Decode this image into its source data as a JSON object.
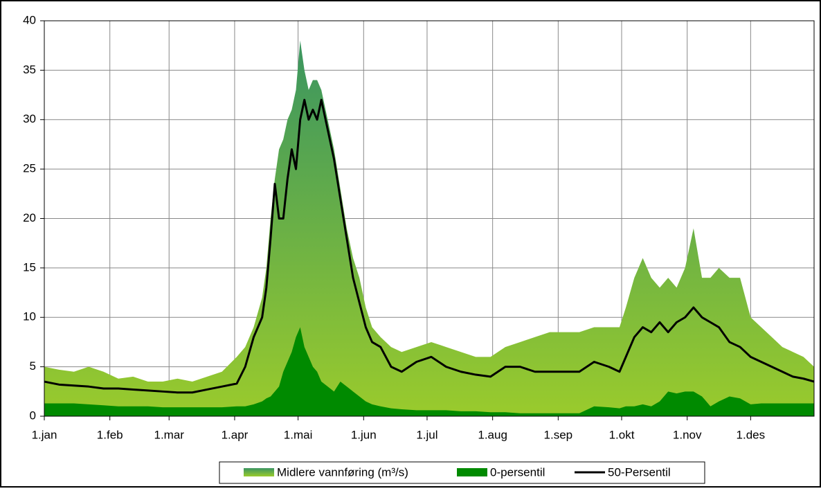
{
  "chart_data": {
    "type": "area",
    "x": [
      1,
      8,
      15,
      22,
      29,
      36,
      43,
      50,
      57,
      64,
      71,
      78,
      85,
      92,
      96,
      100,
      104,
      106,
      108,
      110,
      112,
      114,
      116,
      118,
      120,
      122,
      124,
      126,
      128,
      130,
      132,
      135,
      138,
      141,
      144,
      147,
      150,
      153,
      156,
      160,
      165,
      170,
      177,
      184,
      191,
      198,
      205,
      212,
      219,
      226,
      233,
      240,
      247,
      254,
      261,
      268,
      273,
      276,
      280,
      284,
      288,
      292,
      296,
      300,
      304,
      308,
      312,
      316,
      320,
      325,
      330,
      335,
      340,
      345,
      350,
      355,
      360,
      365
    ],
    "xlim": [
      1,
      365
    ],
    "xticks": [
      {
        "value": 1,
        "label": "1.jan"
      },
      {
        "value": 32,
        "label": "1.feb"
      },
      {
        "value": 60,
        "label": "1.mar"
      },
      {
        "value": 91,
        "label": "1.apr"
      },
      {
        "value": 121,
        "label": "1.mai"
      },
      {
        "value": 152,
        "label": "1.jun"
      },
      {
        "value": 182,
        "label": "1.jul"
      },
      {
        "value": 213,
        "label": "1.aug"
      },
      {
        "value": 244,
        "label": "1.sep"
      },
      {
        "value": 274,
        "label": "1.okt"
      },
      {
        "value": 305,
        "label": "1.nov"
      },
      {
        "value": 335,
        "label": "1.des"
      }
    ],
    "ylim": [
      0,
      40
    ],
    "yticks": [
      0,
      5,
      10,
      15,
      20,
      25,
      30,
      35,
      40
    ],
    "grid": true,
    "legend": "bottom",
    "series": [
      {
        "name": "Midlere vannføring (m³/s)",
        "kind": "area",
        "colors": [
          "#3a9560",
          "#9acb2c"
        ],
        "values": [
          5,
          4.7,
          4.5,
          5,
          4.5,
          3.8,
          4,
          3.5,
          3.5,
          3.8,
          3.5,
          4,
          4.5,
          6,
          7,
          9,
          12,
          15,
          20,
          24,
          27,
          28,
          30,
          31,
          33,
          38,
          35,
          33,
          34,
          34,
          33,
          30,
          27,
          23,
          19,
          16,
          14,
          11,
          9,
          8,
          7,
          6.5,
          7,
          7.5,
          7,
          6.5,
          6,
          6,
          7,
          7.5,
          8,
          8.5,
          8.5,
          8.5,
          9,
          9,
          9,
          11,
          14,
          16,
          14,
          13,
          14,
          13,
          15,
          19,
          14,
          14,
          15,
          14,
          14,
          10,
          9,
          8,
          7,
          6.5,
          6,
          5
        ]
      },
      {
        "name": "0-persentil",
        "kind": "area",
        "colors": [
          "#008a00"
        ],
        "values": [
          1.3,
          1.3,
          1.3,
          1.2,
          1.1,
          1.0,
          1.0,
          1.0,
          0.9,
          0.9,
          0.9,
          0.9,
          0.9,
          1.0,
          1.0,
          1.2,
          1.5,
          1.8,
          2,
          2.5,
          3,
          4.5,
          5.5,
          6.5,
          8,
          9,
          7,
          6,
          5,
          4.5,
          3.5,
          3,
          2.5,
          3.5,
          3,
          2.5,
          2,
          1.5,
          1.2,
          1.0,
          0.8,
          0.7,
          0.6,
          0.6,
          0.6,
          0.5,
          0.5,
          0.4,
          0.4,
          0.3,
          0.3,
          0.3,
          0.3,
          0.3,
          1.0,
          0.9,
          0.8,
          1.0,
          1.0,
          1.2,
          1.0,
          1.5,
          2.5,
          2.3,
          2.5,
          2.5,
          2.0,
          1.0,
          1.5,
          2.0,
          1.8,
          1.2,
          1.3,
          1.3,
          1.3,
          1.3,
          1.3,
          1.3
        ]
      },
      {
        "name": "50-Persentil",
        "kind": "line",
        "colors": [
          "#000000"
        ],
        "values": [
          3.5,
          3.2,
          3.1,
          3,
          2.8,
          2.8,
          2.7,
          2.6,
          2.5,
          2.4,
          2.4,
          2.7,
          3,
          3.3,
          5,
          8,
          10,
          13,
          18,
          23.5,
          20,
          20,
          24,
          27,
          25,
          30,
          32,
          30,
          31,
          30,
          32,
          29,
          26,
          22,
          18,
          14,
          11.5,
          9,
          7.5,
          7,
          5,
          4.5,
          5.5,
          6,
          5,
          4.5,
          4.2,
          4.0,
          5,
          5,
          4.5,
          4.5,
          4.5,
          4.5,
          5.5,
          5,
          4.5,
          6,
          8,
          9,
          8.5,
          9.5,
          8.5,
          9.5,
          10,
          11,
          10,
          9.5,
          9,
          7.5,
          7,
          6,
          5.5,
          5,
          4.5,
          4,
          3.8,
          3.5
        ]
      }
    ]
  }
}
